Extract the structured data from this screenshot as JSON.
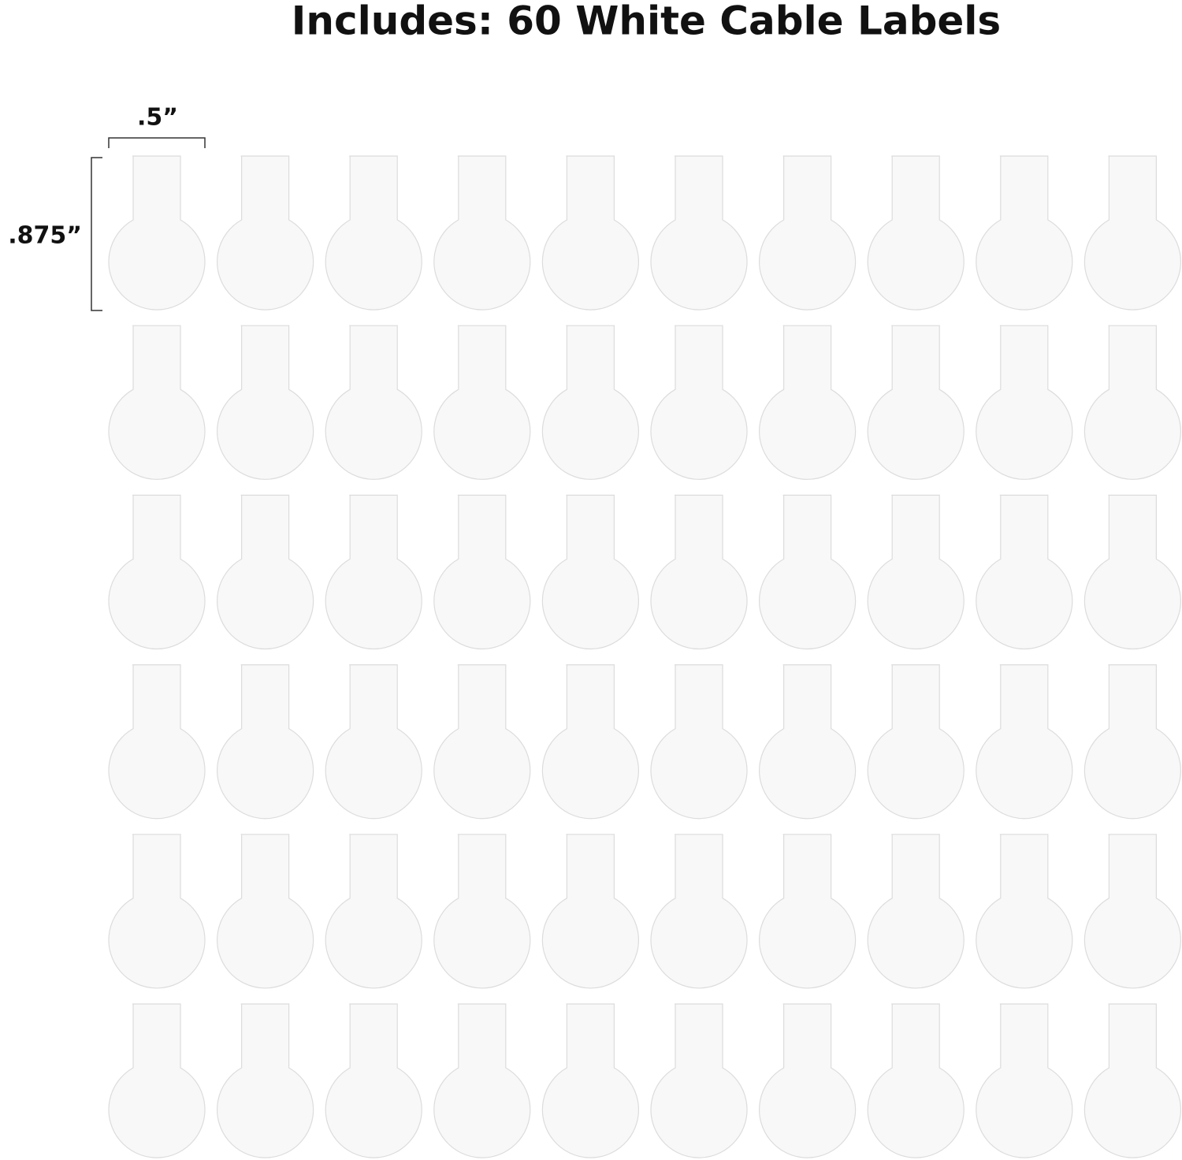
{
  "header": {
    "title": "Includes: 60 White Cable Labels"
  },
  "dimensions": {
    "width": ".5”",
    "height": ".875”"
  }
}
